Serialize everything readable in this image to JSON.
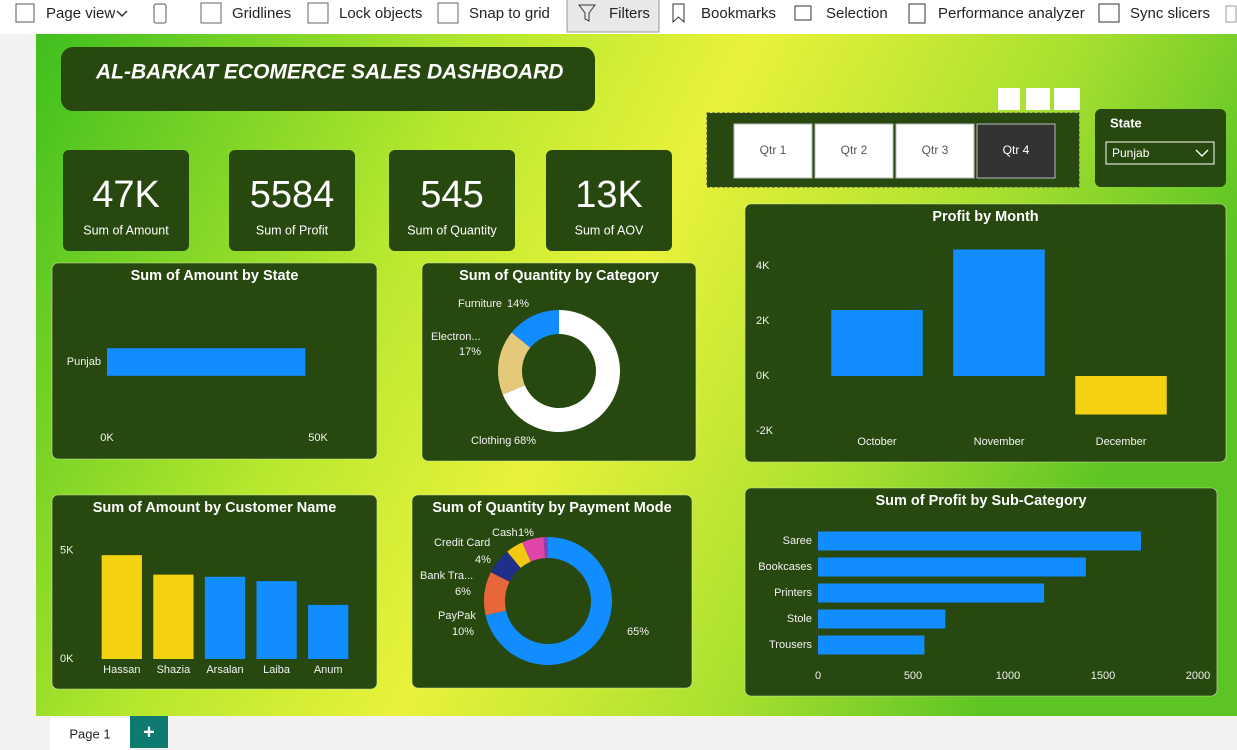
{
  "toolbar": {
    "items": [
      "Page view",
      "Gridlines",
      "Lock objects",
      "Snap to grid",
      "Filters",
      "Bookmarks",
      "Selection",
      "Performance analyzer",
      "Sync slicers"
    ]
  },
  "dashboard_title": "AL-BARKAT ECOMERCE SALES DASHBOARD",
  "kpis": [
    {
      "value": "47K",
      "label": "Sum of Amount"
    },
    {
      "value": "5584",
      "label": "Sum of Profit"
    },
    {
      "value": "545",
      "label": "Sum of Quantity"
    },
    {
      "value": "13K",
      "label": "Sum of AOV"
    }
  ],
  "quarter_slicer": {
    "options": [
      {
        "label": "Qtr 1",
        "selected": false
      },
      {
        "label": "Qtr 2",
        "selected": false
      },
      {
        "label": "Qtr 3",
        "selected": false
      },
      {
        "label": "Qtr 4",
        "selected": true
      }
    ]
  },
  "state_slicer": {
    "label": "State",
    "value": "Punjab"
  },
  "page_tabs": {
    "pages": [
      "Page 1"
    ],
    "add": "+"
  },
  "chart_data": [
    {
      "type": "bar",
      "horizontal": true,
      "title": "Sum of Amount by State",
      "categories": [
        "Punjab"
      ],
      "values": [
        47000
      ],
      "color": "#118dff",
      "xlim": [
        0,
        50000
      ],
      "xticks": [
        {
          "value": 0,
          "label": "0K"
        },
        {
          "value": 50000,
          "label": "50K"
        }
      ]
    },
    {
      "type": "donut",
      "title": "Sum of Quantity by Category",
      "categories": [
        "Clothing",
        "Electron...",
        "Furniture"
      ],
      "values": [
        68,
        17,
        14
      ],
      "value_labels": [
        "68%",
        "17%",
        "14%"
      ],
      "colors": [
        "#ffffff",
        "#e5c97a",
        "#118dff"
      ]
    },
    {
      "type": "bar",
      "title": "Profit by Month",
      "categories": [
        "October",
        "November",
        "December"
      ],
      "values": [
        2400,
        4600,
        -1400
      ],
      "colors": [
        "#118dff",
        "#118dff",
        "#f5d20f"
      ],
      "ylim": [
        -2400,
        4800
      ],
      "yticks": [
        {
          "value": -2000,
          "label": "-2K"
        },
        {
          "value": 0,
          "label": "0K"
        },
        {
          "value": 2000,
          "label": "2K"
        },
        {
          "value": 4000,
          "label": "4K"
        }
      ]
    },
    {
      "type": "bar",
      "title": "Sum of Amount by Customer Name",
      "categories": [
        "Hassan",
        "Shazia",
        "Arsalan",
        "Laiba",
        "Anum"
      ],
      "values": [
        4800,
        3900,
        3800,
        3600,
        2500
      ],
      "colors": [
        "#f5d20f",
        "#f5d20f",
        "#118dff",
        "#118dff",
        "#118dff"
      ],
      "ylim": [
        0,
        5500
      ],
      "yticks": [
        {
          "value": 0,
          "label": "0K"
        },
        {
          "value": 5000,
          "label": "5K"
        }
      ]
    },
    {
      "type": "donut",
      "title": "Sum of Quantity by Payment Mode",
      "categories": [
        null,
        "PayPak",
        "Bank Tra...",
        "Credit Card",
        null,
        "Cash"
      ],
      "values": [
        65,
        10,
        6,
        4,
        5,
        1
      ],
      "value_labels": [
        "65%",
        "10%",
        "6%",
        "4%",
        null,
        "1%"
      ],
      "colors": [
        "#118dff",
        "#e8663c",
        "#1f2f8a",
        "#f2c811",
        "#e044a7",
        "#8b3fb5"
      ]
    },
    {
      "type": "bar",
      "horizontal": true,
      "title": "Sum of Profit by Sub-Category",
      "categories": [
        "Saree",
        "Bookcases",
        "Printers",
        "Stole",
        "Trousers"
      ],
      "values": [
        1700,
        1410,
        1190,
        670,
        560
      ],
      "color": "#118dff",
      "xlim": [
        0,
        2000
      ],
      "xticks": [
        0,
        500,
        1000,
        1500,
        2000
      ]
    }
  ]
}
